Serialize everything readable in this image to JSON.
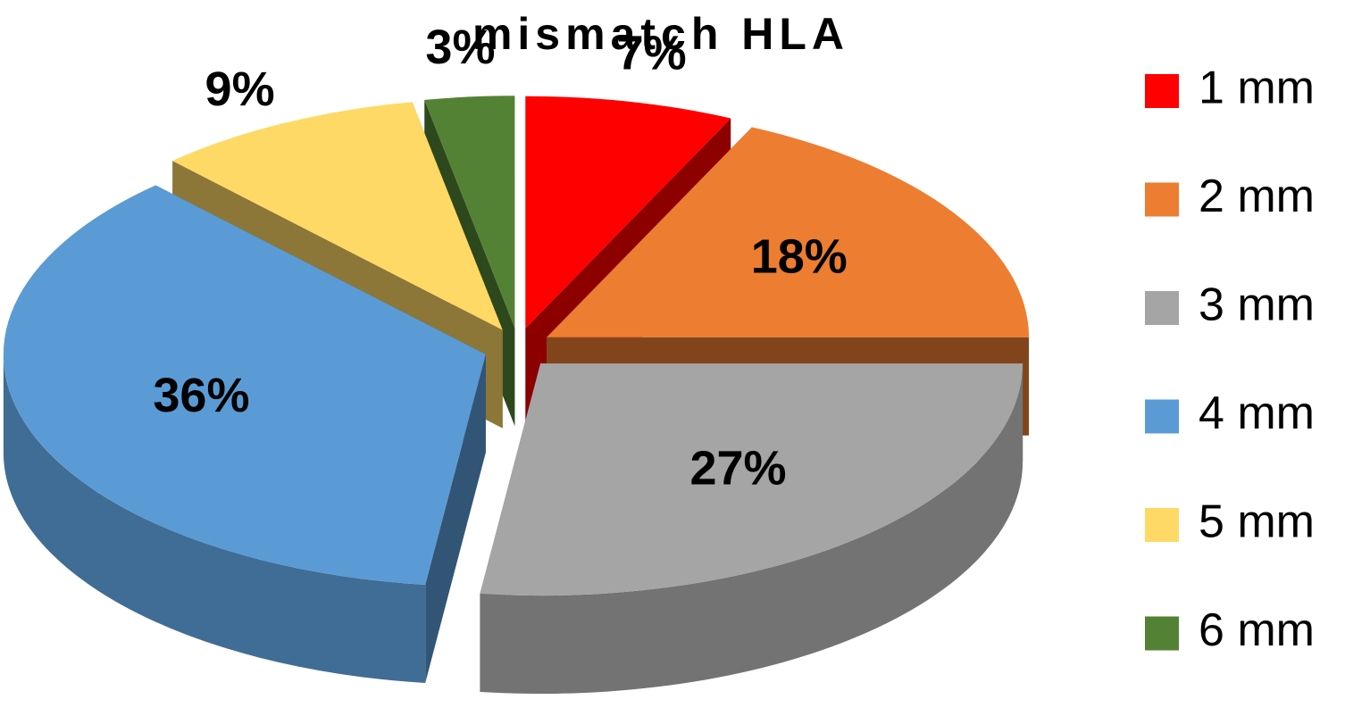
{
  "chart_data": {
    "type": "pie",
    "title": "mismatch HLA",
    "categories": [
      "1 mm",
      "2 mm",
      "3 mm",
      "4 mm",
      "5 mm",
      "6 mm"
    ],
    "values": [
      7,
      18,
      27,
      36,
      9,
      3
    ],
    "value_labels": [
      "7%",
      "18%",
      "27%",
      "36%",
      "9%",
      "3%"
    ],
    "colors": [
      "#ff0000",
      "#ed7d31",
      "#a5a5a5",
      "#5b9bd5",
      "#ffd966",
      "#548235"
    ],
    "legend": "right"
  }
}
